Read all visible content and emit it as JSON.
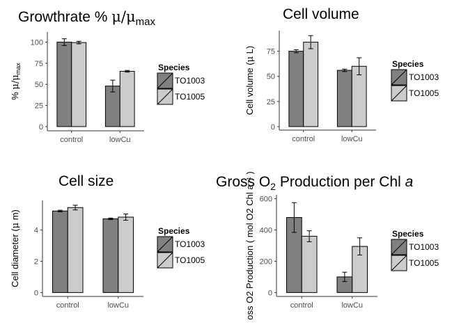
{
  "colors": {
    "TO1003": "#808080",
    "TO1005": "#cccccc",
    "axis": "#333333",
    "tick_text": "#4d4d4d"
  },
  "chart_data": [
    {
      "type": "bar",
      "title_parts": {
        "main": "Growthrate % ",
        "sym": "μ",
        "mid": "/",
        "sym2": "μ",
        "sub": "max"
      },
      "ylabel_parts": {
        "pre": "% ",
        "sym": "μ",
        "mid": "/",
        "sym2": "μ",
        "sub": "max"
      },
      "categories": [
        "control",
        "lowCu"
      ],
      "series": [
        {
          "name": "TO1003",
          "values": [
            100,
            48
          ],
          "err": [
            4,
            7
          ]
        },
        {
          "name": "TO1005",
          "values": [
            99.5,
            65.5
          ],
          "err": [
            1.5,
            1
          ]
        }
      ],
      "ylim": [
        -5,
        112
      ],
      "yticks": [
        "0",
        "25",
        "50",
        "75",
        "100"
      ],
      "legend": {
        "title": "Species",
        "position": "right"
      }
    },
    {
      "type": "bar",
      "title_parts": {
        "main": "Cell volume"
      },
      "ylabel_parts": {
        "pre": "Cell volume (",
        "sym": "μ",
        "post": " L)"
      },
      "categories": [
        "control",
        "lowCu"
      ],
      "series": [
        {
          "name": "TO1003",
          "values": [
            75,
            56
          ],
          "err": [
            1.5,
            1.2
          ]
        },
        {
          "name": "TO1005",
          "values": [
            84,
            60
          ],
          "err": [
            6.5,
            8.5
          ]
        }
      ],
      "ylim": [
        -3.5,
        95.5
      ],
      "yticks": [
        "0",
        "25",
        "50",
        "75"
      ],
      "legend": {
        "title": "Species",
        "position": "right"
      }
    },
    {
      "type": "bar",
      "title_parts": {
        "main": "Cell size"
      },
      "ylabel_parts": {
        "pre": "Cell diameter (",
        "sym": "μ",
        "post": " m)"
      },
      "categories": [
        "control",
        "lowCu"
      ],
      "series": [
        {
          "name": "TO1003",
          "values": [
            5.22,
            4.72
          ],
          "err": [
            0.05,
            0.05
          ]
        },
        {
          "name": "TO1005",
          "values": [
            5.44,
            4.83
          ],
          "err": [
            0.15,
            0.2
          ]
        }
      ],
      "ylim": [
        -0.25,
        5.9
      ],
      "yticks": [
        "0",
        "2",
        "4"
      ],
      "legend": {
        "title": "Species",
        "position": "right"
      }
    },
    {
      "type": "bar",
      "title_parts": {
        "main": "Gross  O",
        "sub": "2",
        "post": " Production per Chl ",
        "ital": "a"
      },
      "ylabel_parts": {
        "text": "oss  O2 Production ( mol O2  Chl a⁻¹ )"
      },
      "categories": [
        "control",
        "lowCu"
      ],
      "series": [
        {
          "name": "TO1003",
          "values": [
            480,
            100
          ],
          "err": [
            95,
            30
          ]
        },
        {
          "name": "TO1005",
          "values": [
            360,
            295
          ],
          "err": [
            35,
            55
          ]
        }
      ],
      "ylim": [
        -25,
        625
      ],
      "yticks": [
        "0",
        "200",
        "400",
        "600"
      ],
      "legend": {
        "title": "Species",
        "position": "right"
      }
    }
  ]
}
